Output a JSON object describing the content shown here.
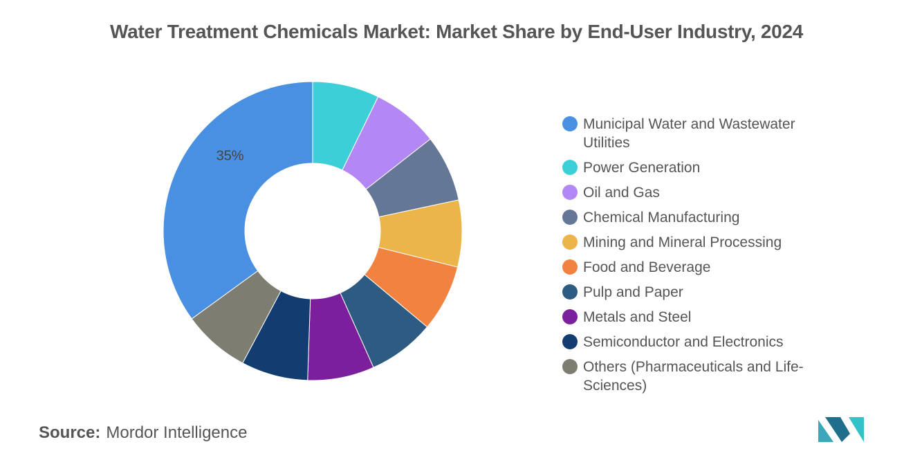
{
  "title": "Water Treatment Chemicals Market: Market Share by End-User Industry, 2024",
  "source": {
    "label": "Source:",
    "value": "Mordor Intelligence"
  },
  "logo_colors": [
    "#3ba7b8",
    "#1f6e8c",
    "#35c1c8"
  ],
  "chart_data": {
    "type": "pie",
    "title": "Water Treatment Chemicals Market: Market Share by End-User Industry, 2024",
    "donut": true,
    "legend_position": "right",
    "series": [
      {
        "name": "Municipal Water and Wastewater Utilities",
        "value": 35,
        "label": "35%",
        "color": "#4a90e2"
      },
      {
        "name": "Power Generation",
        "value": 7.22,
        "label": "",
        "color": "#3dcfd8"
      },
      {
        "name": "Oil and Gas",
        "value": 7.22,
        "label": "",
        "color": "#b388f5"
      },
      {
        "name": "Chemical Manufacturing",
        "value": 7.22,
        "label": "",
        "color": "#657796"
      },
      {
        "name": "Mining and Mineral Processing",
        "value": 7.22,
        "label": "",
        "color": "#ecb54a"
      },
      {
        "name": "Food and Beverage",
        "value": 7.22,
        "label": "",
        "color": "#f28240"
      },
      {
        "name": "Pulp and Paper",
        "value": 7.22,
        "label": "",
        "color": "#2e5b82"
      },
      {
        "name": "Metals and Steel",
        "value": 7.22,
        "label": "",
        "color": "#7b1f9c"
      },
      {
        "name": "Semiconductor and Electronics",
        "value": 7.22,
        "label": "",
        "color": "#133d70"
      },
      {
        "name": "Others (Pharmaceuticals and Life-Sciences)",
        "value": 7.24,
        "label": "",
        "color": "#7d7d72"
      }
    ]
  }
}
